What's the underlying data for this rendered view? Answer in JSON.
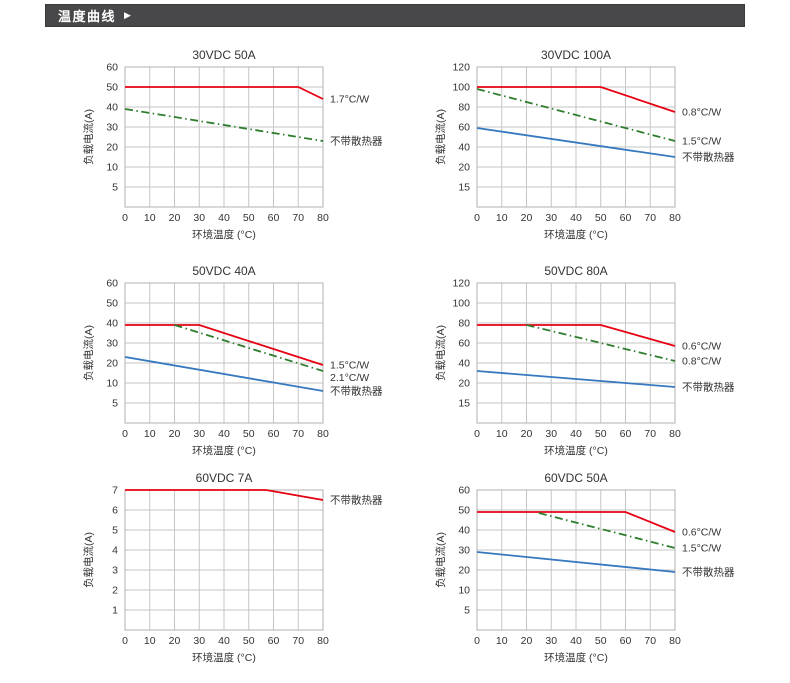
{
  "header": {
    "title": "温度曲线",
    "arrow": "▶"
  },
  "colors": {
    "red": "#e60012",
    "green": "#2e7d2e",
    "blue": "#3779be",
    "grid": "#c6c6c6",
    "frame": "#b2b2b2",
    "text": "#333333",
    "header_bg": "#48484a",
    "header_text": "#ffffff"
  },
  "chart_data": [
    {
      "type": "line",
      "title": "30VDC 50A",
      "xlabel": "环境温度 (°C)",
      "ylabel": "负载电流(A)",
      "x_ticks": [
        0,
        10,
        20,
        30,
        40,
        50,
        60,
        70,
        80
      ],
      "y_ticks": [
        60,
        50,
        40,
        30,
        20,
        10,
        5
      ],
      "series": [
        {
          "name": "1.7°C/W",
          "color": "red",
          "style": "solid",
          "points": [
            [
              0,
              50
            ],
            [
              70,
              50
            ],
            [
              80,
              44
            ]
          ]
        },
        {
          "name": "不带散热器",
          "color": "green",
          "style": "dashdot",
          "points": [
            [
              0,
              39
            ],
            [
              80,
              23
            ]
          ]
        }
      ]
    },
    {
      "type": "line",
      "title": "30VDC 100A",
      "xlabel": "环境温度 (°C)",
      "ylabel": "负载电流(A)",
      "x_ticks": [
        0,
        10,
        20,
        30,
        40,
        50,
        60,
        70,
        80
      ],
      "y_ticks": [
        120,
        100,
        80,
        60,
        40,
        20,
        15
      ],
      "series": [
        {
          "name": "0.8°C/W",
          "color": "red",
          "style": "solid",
          "points": [
            [
              0,
              100
            ],
            [
              50,
              100
            ],
            [
              80,
              75
            ]
          ]
        },
        {
          "name": "1.5°C/W",
          "color": "green",
          "style": "dashdot",
          "points": [
            [
              0,
              98
            ],
            [
              80,
              46
            ]
          ]
        },
        {
          "name": "不带散热器",
          "color": "blue",
          "style": "solid",
          "points": [
            [
              0,
              59
            ],
            [
              80,
              30
            ]
          ]
        }
      ]
    },
    {
      "type": "line",
      "title": "50VDC 40A",
      "xlabel": "环境温度 (°C)",
      "ylabel": "负载电流(A)",
      "x_ticks": [
        0,
        10,
        20,
        30,
        40,
        50,
        60,
        70,
        80
      ],
      "y_ticks": [
        60,
        50,
        40,
        30,
        20,
        10,
        5
      ],
      "series": [
        {
          "name": "1.5°C/W",
          "color": "red",
          "style": "solid",
          "points": [
            [
              0,
              39
            ],
            [
              30,
              39
            ],
            [
              80,
              19
            ]
          ]
        },
        {
          "name": "2.1°C/W",
          "color": "green",
          "style": "dashdot",
          "points": [
            [
              20,
              39
            ],
            [
              80,
              16
            ]
          ]
        },
        {
          "name": "不带散热器",
          "color": "blue",
          "style": "solid",
          "points": [
            [
              0,
              23
            ],
            [
              80,
              8
            ]
          ]
        }
      ]
    },
    {
      "type": "line",
      "title": "50VDC 80A",
      "xlabel": "环境温度 (°C)",
      "ylabel": "负载电流(A)",
      "x_ticks": [
        0,
        10,
        20,
        30,
        40,
        50,
        60,
        70,
        80
      ],
      "y_ticks": [
        120,
        100,
        80,
        60,
        40,
        20,
        15
      ],
      "series": [
        {
          "name": "0.6°C/W",
          "color": "red",
          "style": "solid",
          "points": [
            [
              0,
              78
            ],
            [
              50,
              78
            ],
            [
              80,
              57
            ]
          ]
        },
        {
          "name": "0.8°C/W",
          "color": "green",
          "style": "dashdot",
          "points": [
            [
              20,
              78
            ],
            [
              80,
              42
            ]
          ]
        },
        {
          "name": "不带散热器",
          "color": "blue",
          "style": "solid",
          "points": [
            [
              0,
              32
            ],
            [
              80,
              19
            ]
          ]
        }
      ]
    },
    {
      "type": "line",
      "title": "60VDC 7A",
      "xlabel": "环境温度 (°C)",
      "ylabel": "负载电流(A)",
      "x_ticks": [
        0,
        10,
        20,
        30,
        40,
        50,
        60,
        70,
        80
      ],
      "y_ticks": [
        7,
        6,
        5,
        4,
        3,
        2,
        1
      ],
      "series": [
        {
          "name": "不带散热器",
          "color": "red",
          "style": "solid",
          "points": [
            [
              0,
              7
            ],
            [
              57,
              7
            ],
            [
              80,
              6.5
            ]
          ]
        }
      ]
    },
    {
      "type": "line",
      "title": "60VDC 50A",
      "xlabel": "环境温度 (°C)",
      "ylabel": "负载电流(A)",
      "x_ticks": [
        0,
        10,
        20,
        30,
        40,
        50,
        60,
        70,
        80
      ],
      "y_ticks": [
        60,
        50,
        40,
        30,
        20,
        10,
        5
      ],
      "series": [
        {
          "name": "0.6°C/W",
          "color": "red",
          "style": "solid",
          "points": [
            [
              0,
              49
            ],
            [
              60,
              49
            ],
            [
              80,
              39
            ]
          ]
        },
        {
          "name": "1.5°C/W",
          "color": "green",
          "style": "dashdot",
          "points": [
            [
              25,
              48.5
            ],
            [
              80,
              31
            ]
          ]
        },
        {
          "name": "不带散热器",
          "color": "blue",
          "style": "solid",
          "points": [
            [
              0,
              29
            ],
            [
              80,
              19
            ]
          ]
        }
      ]
    }
  ]
}
